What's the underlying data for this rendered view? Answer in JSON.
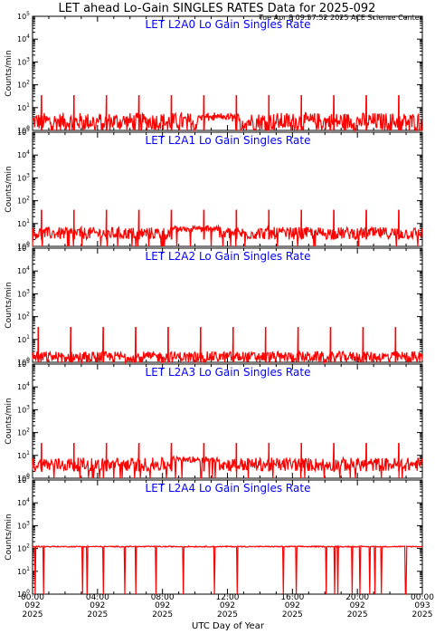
{
  "header": {
    "title": "LET ahead Lo-Gain SINGLES RATES Data for 2025-092",
    "timestamp": "Tue Apr  8 09:57:52 2025 ACE Science Center"
  },
  "colors": {
    "series": "#ff0000",
    "panel_title": "#0000ff",
    "axis": "#000000"
  },
  "chart_data": [
    {
      "type": "line",
      "title": "LET L2A0 Lo Gain Singles Rate",
      "ylabel": "Counts/min",
      "yscale": "log",
      "ylim": [
        1,
        100000
      ],
      "yticks": [
        "10^0",
        "10^1",
        "10^2",
        "10^3",
        "10^4",
        "10^5"
      ],
      "baseline": [
        1,
        6
      ],
      "spike_value": 35,
      "spike_hours": [
        0.55,
        2.55,
        4.55,
        6.55,
        8.55,
        10.55,
        12.55,
        14.55,
        16.55,
        18.55,
        20.55,
        22.55
      ],
      "elevated_window": {
        "from_hour": 10.2,
        "to_hour": 12.5,
        "value": 5
      }
    },
    {
      "type": "line",
      "title": "LET L2A1 Lo Gain Singles Rate",
      "ylabel": "Counts/min",
      "yscale": "log",
      "ylim": [
        1,
        100000
      ],
      "yticks": [
        "10^0",
        "10^1",
        "10^2",
        "10^3",
        "10^4",
        "10^5"
      ],
      "baseline": [
        2,
        7
      ],
      "spike_value": 40,
      "spike_hours": [
        0.55,
        2.55,
        4.55,
        6.55,
        8.55,
        10.55,
        12.55,
        14.55,
        16.55,
        18.55,
        20.55,
        22.55
      ],
      "elevated_window": {
        "from_hour": 8.5,
        "to_hour": 11.5,
        "value": 8
      }
    },
    {
      "type": "line",
      "title": "LET L2A2 Lo Gain Singles Rate",
      "ylabel": "Counts/min",
      "yscale": "log",
      "ylim": [
        1,
        100000
      ],
      "yticks": [
        "10^0",
        "10^1",
        "10^2",
        "10^3",
        "10^4",
        "10^5"
      ],
      "baseline": [
        1,
        3
      ],
      "spike_value": 35,
      "spike_hours": [
        0.35,
        2.35,
        4.35,
        6.35,
        8.35,
        10.35,
        12.35,
        14.35,
        16.35,
        18.35,
        20.35,
        22.35
      ],
      "elevated_window": null
    },
    {
      "type": "line",
      "title": "LET L2A3 Lo Gain Singles Rate",
      "ylabel": "Counts/min",
      "yscale": "log",
      "ylim": [
        1,
        100000
      ],
      "yticks": [
        "10^0",
        "10^1",
        "10^2",
        "10^3",
        "10^4",
        "10^5"
      ],
      "baseline": [
        2,
        8
      ],
      "spike_value": 35,
      "spike_hours": [
        0.55,
        2.55,
        4.55,
        6.55,
        8.55,
        10.55,
        12.55,
        14.55,
        16.55,
        18.55,
        20.55,
        22.55
      ],
      "elevated_window": {
        "from_hour": 8.5,
        "to_hour": 11.5,
        "value": 9
      }
    },
    {
      "type": "line",
      "title": "LET L2A4 Lo Gain Singles Rate",
      "ylabel": "Counts/min",
      "yscale": "log",
      "ylim": [
        1,
        100000
      ],
      "yticks": [
        "10^0",
        "10^1",
        "10^2",
        "10^3",
        "10^4",
        "10^5"
      ],
      "baseline": [
        115,
        128
      ],
      "spike_value": 135,
      "spike_hours": [],
      "elevated_window": null
    }
  ],
  "xaxis": {
    "label": "UTC Day of Year",
    "range_hours": [
      0,
      24
    ],
    "ticks": [
      {
        "hour": 0,
        "time": "00:00",
        "day": "092",
        "year": "2025"
      },
      {
        "hour": 4,
        "time": "04:00",
        "day": "092",
        "year": "2025"
      },
      {
        "hour": 8,
        "time": "08:00",
        "day": "092",
        "year": "2025"
      },
      {
        "hour": 12,
        "time": "12:00",
        "day": "092",
        "year": "2025"
      },
      {
        "hour": 16,
        "time": "16:00",
        "day": "092",
        "year": "2025"
      },
      {
        "hour": 20,
        "time": "20:00",
        "day": "092",
        "year": "2025"
      },
      {
        "hour": 24,
        "time": "00:00",
        "day": "093",
        "year": "2025"
      }
    ]
  }
}
